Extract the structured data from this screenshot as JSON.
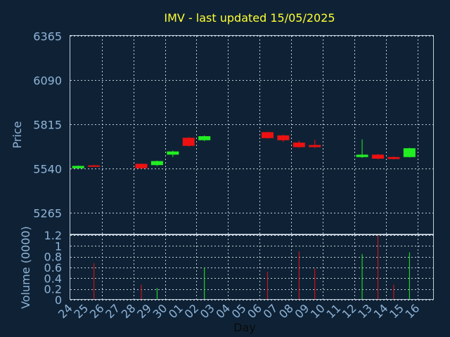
{
  "chart_data": {
    "type": "candlestick",
    "title": "IMV - last updated 15/05/2025",
    "xlabel": "Day",
    "price_panel": {
      "ylabel": "Price",
      "ylim": [
        5128,
        6365
      ],
      "yticks": [
        5265,
        5540,
        5815,
        6090,
        6365
      ]
    },
    "volume_panel": {
      "ylabel": "Volume (0000)",
      "ylim": [
        0,
        1.2
      ],
      "yticks": [
        "0",
        "0.2",
        "0.4",
        "0.6",
        "0.8",
        "1",
        "1.2"
      ]
    },
    "day_labels": [
      "24",
      "25",
      "26",
      "27",
      "28",
      "29",
      "30",
      "01",
      "02",
      "03",
      "04",
      "05",
      "06",
      "07",
      "08",
      "09",
      "10",
      "11",
      "12",
      "13",
      "14",
      "15",
      "16"
    ],
    "candles": [
      {
        "day": "24",
        "open": 5540,
        "close": 5555,
        "high": 5558,
        "low": 5538,
        "volume": 0,
        "up": true
      },
      {
        "day": "25",
        "open": 5558,
        "close": 5552,
        "high": 5562,
        "low": 5550,
        "volume": 0.68,
        "up": false
      },
      {
        "day": "28",
        "open": 5568,
        "close": 5540,
        "high": 5570,
        "low": 5536,
        "volume": 0.28,
        "up": false
      },
      {
        "day": "29",
        "open": 5560,
        "close": 5585,
        "high": 5588,
        "low": 5555,
        "volume": 0.22,
        "up": true
      },
      {
        "day": "30",
        "open": 5625,
        "close": 5645,
        "high": 5650,
        "low": 5610,
        "volume": 0,
        "up": true
      },
      {
        "day": "01",
        "open": 5730,
        "close": 5680,
        "high": 5735,
        "low": 5675,
        "volume": 0,
        "up": false
      },
      {
        "day": "02",
        "open": 5715,
        "close": 5740,
        "high": 5745,
        "low": 5710,
        "volume": 0.6,
        "up": true
      },
      {
        "day": "06",
        "open": 5765,
        "close": 5728,
        "high": 5768,
        "low": 5725,
        "volume": 0.52,
        "up": false
      },
      {
        "day": "07",
        "open": 5745,
        "close": 5715,
        "high": 5750,
        "low": 5705,
        "volume": 0,
        "up": false
      },
      {
        "day": "08",
        "open": 5700,
        "close": 5672,
        "high": 5712,
        "low": 5668,
        "volume": 0.9,
        "up": false
      },
      {
        "day": "09",
        "open": 5685,
        "close": 5672,
        "high": 5718,
        "low": 5668,
        "volume": 0.58,
        "up": false
      },
      {
        "day": "12",
        "open": 5610,
        "close": 5625,
        "high": 5720,
        "low": 5605,
        "volume": 0.85,
        "up": true
      },
      {
        "day": "13",
        "open": 5625,
        "close": 5600,
        "high": 5630,
        "low": 5596,
        "volume": 1.2,
        "up": false
      },
      {
        "day": "14",
        "open": 5610,
        "close": 5598,
        "high": 5614,
        "low": 5596,
        "volume": 0.28,
        "up": false
      },
      {
        "day": "15",
        "open": 5610,
        "close": 5665,
        "high": 5668,
        "low": 5608,
        "volume": 0.88,
        "up": true
      }
    ],
    "colors": {
      "up": "#22ee22",
      "down": "#ee1111",
      "background": "#0f2235",
      "grid": "#c0ccd8",
      "text": "#8fb4d9",
      "title": "#ffff33"
    }
  }
}
